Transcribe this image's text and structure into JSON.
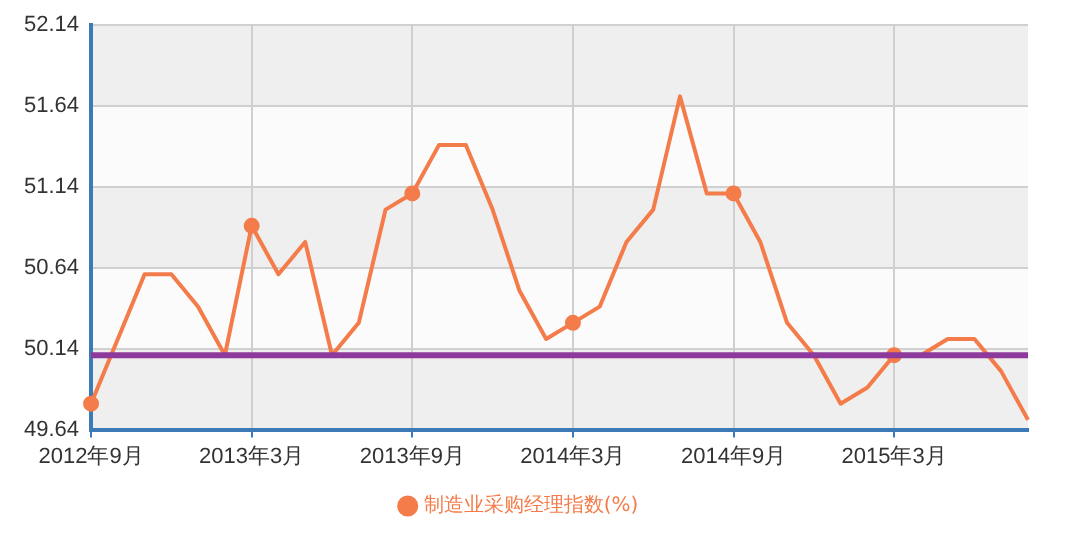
{
  "chart_data": {
    "type": "line",
    "categories": [
      "2012年9月",
      null,
      null,
      null,
      null,
      null,
      "2013年3月",
      null,
      null,
      null,
      null,
      null,
      "2013年9月",
      null,
      null,
      null,
      null,
      null,
      "2014年3月",
      null,
      null,
      null,
      null,
      null,
      "2014年9月",
      null,
      null,
      null,
      null,
      null,
      "2015年3月",
      null,
      null,
      null,
      null,
      null
    ],
    "series": [
      {
        "name": "制造业采购经理指数(%)",
        "color": "#f47c4a",
        "values": [
          49.8,
          50.2,
          50.6,
          50.6,
          50.4,
          50.1,
          50.9,
          50.6,
          50.8,
          50.1,
          50.3,
          51.0,
          51.1,
          51.4,
          51.4,
          51.0,
          50.5,
          50.2,
          50.3,
          50.4,
          50.8,
          51.0,
          51.7,
          51.1,
          51.1,
          50.8,
          50.3,
          50.1,
          49.8,
          49.9,
          50.1,
          50.1,
          50.2,
          50.2,
          50.0,
          49.7
        ]
      }
    ],
    "ylim": [
      49.64,
      52.14
    ],
    "yticks": [
      49.64,
      50.14,
      50.64,
      51.14,
      51.64,
      52.14
    ],
    "ref_lines": [
      {
        "axis": "y",
        "value": 50.1,
        "color": "#8e3a9c"
      }
    ],
    "grid": true,
    "legend": "bottom",
    "line_style": "solid"
  }
}
